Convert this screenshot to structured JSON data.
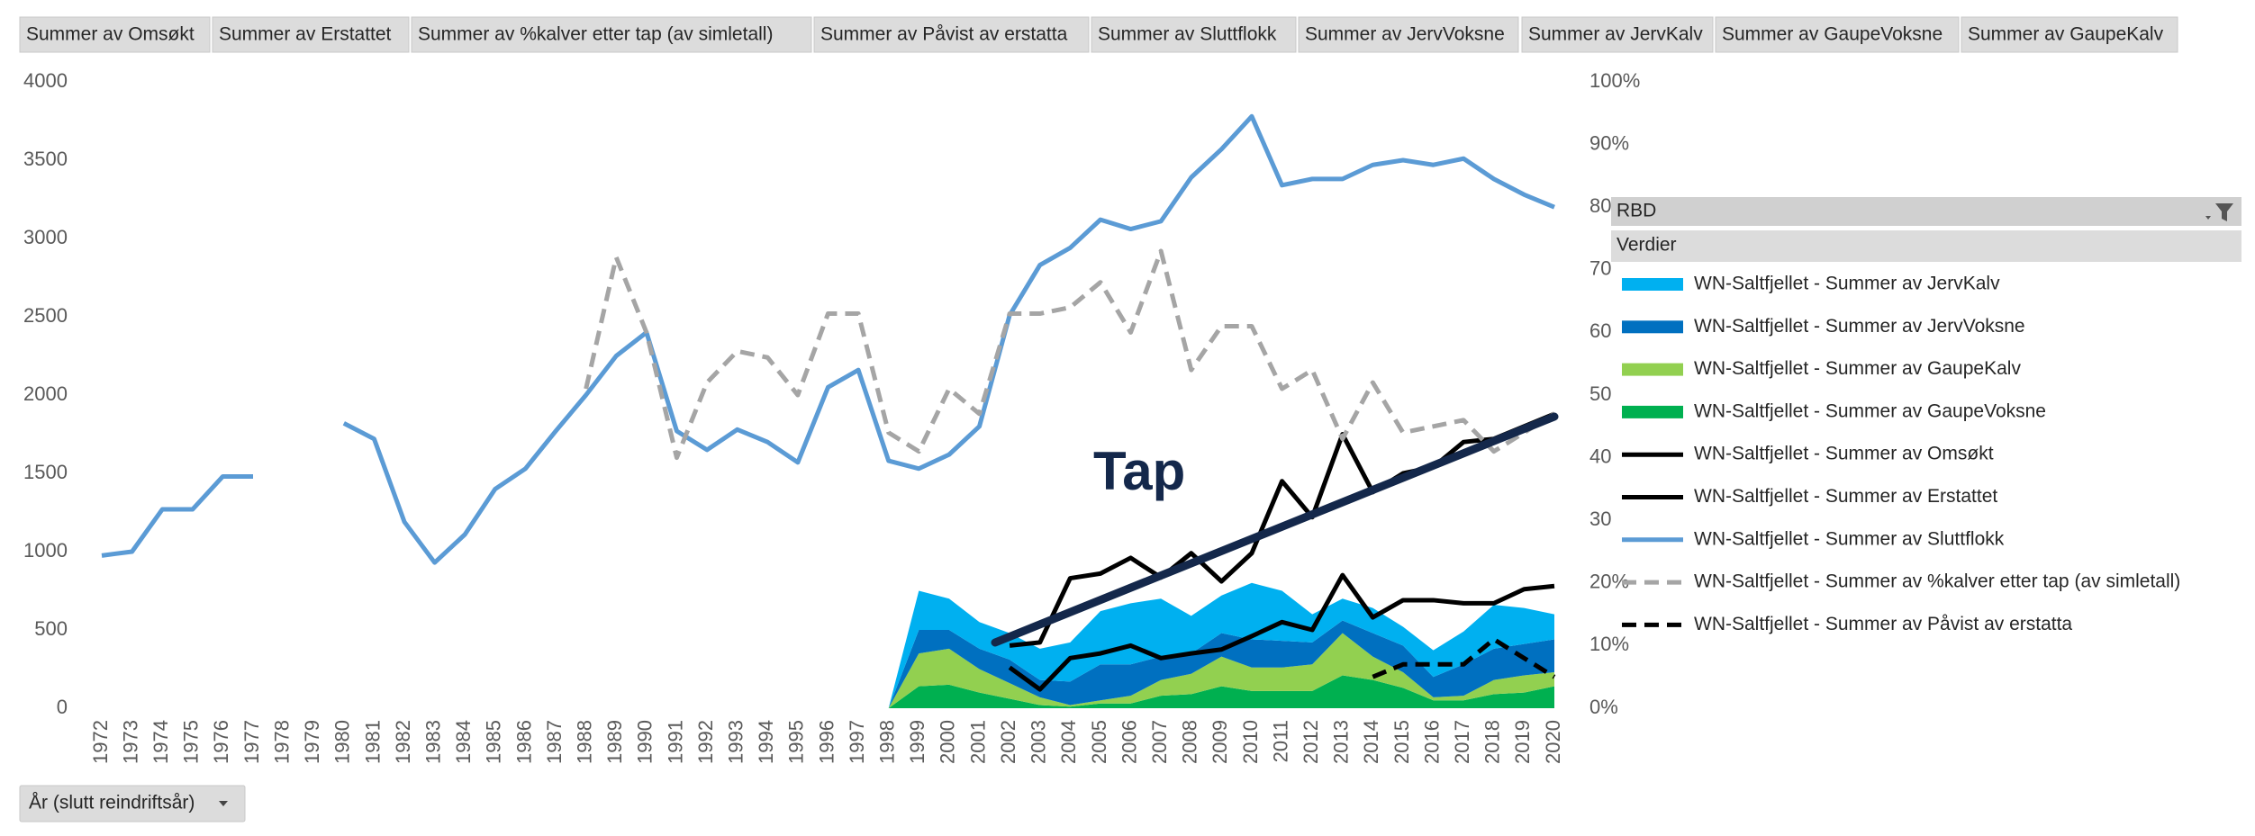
{
  "field_buttons": [
    "Summer av Omsøkt",
    "Summer av Erstattet",
    "Summer av %kalver etter tap (av simletall)",
    "Summer av Påvist av erstatta",
    "Summer av Sluttflokk",
    "Summer av JervVoksne",
    "Summer av JervKalv",
    "Summer av GaupeVoksne",
    "Summer av GaupeKalv"
  ],
  "axis_button": "År (slutt reindriftsår)",
  "legend_header": "RBD",
  "legend_subheader": "Verdier",
  "chart_data": {
    "type": "combo",
    "annotation": "Tap",
    "categories": [
      "1972",
      "1973",
      "1974",
      "1975",
      "1976",
      "1977",
      "1978",
      "1979",
      "1980",
      "1981",
      "1982",
      "1983",
      "1984",
      "1985",
      "1986",
      "1987",
      "1988",
      "1989",
      "1990",
      "1991",
      "1992",
      "1993",
      "1994",
      "1995",
      "1996",
      "1997",
      "1998",
      "1999",
      "2000",
      "2001",
      "2002",
      "2003",
      "2004",
      "2005",
      "2006",
      "2007",
      "2008",
      "2009",
      "2010",
      "2011",
      "2012",
      "2013",
      "2014",
      "2015",
      "2016",
      "2017",
      "2018",
      "2019",
      "2020"
    ],
    "ylim": [
      0,
      4000
    ],
    "yticks": [
      0,
      500,
      1000,
      1500,
      2000,
      2500,
      3000,
      3500,
      4000
    ],
    "y2lim": [
      0,
      100
    ],
    "y2ticks": [
      {
        "value": 0,
        "label": "0%"
      },
      {
        "value": 10,
        "label": "10%"
      },
      {
        "value": 20,
        "label": "20%"
      },
      {
        "value": 30,
        "label": "30%"
      },
      {
        "value": 40,
        "label": "40%"
      },
      {
        "value": 50,
        "label": "50%"
      },
      {
        "value": 60,
        "label": "60%"
      },
      {
        "value": 70,
        "label": "70%"
      },
      {
        "value": 80,
        "label": "80%"
      },
      {
        "value": 90,
        "label": "90%"
      },
      {
        "value": 100,
        "label": "100%"
      }
    ],
    "grid": false,
    "legend": "right",
    "series": [
      {
        "name": "WN-Saltfjellet - Summer av JervKalv",
        "color": "#00b0f0",
        "kind": "area",
        "axis": "y",
        "values": [
          null,
          null,
          null,
          null,
          null,
          null,
          null,
          null,
          null,
          null,
          null,
          null,
          null,
          null,
          null,
          null,
          null,
          null,
          null,
          null,
          null,
          null,
          null,
          null,
          null,
          null,
          0,
          250,
          200,
          170,
          170,
          200,
          250,
          340,
          390,
          370,
          240,
          240,
          360,
          320,
          180,
          140,
          160,
          120,
          170,
          210,
          280,
          230,
          160
        ]
      },
      {
        "name": "WN-Saltfjellet - Summer av JervVoksne",
        "color": "#0070c0",
        "kind": "area",
        "axis": "y",
        "values": [
          null,
          null,
          null,
          null,
          null,
          null,
          null,
          null,
          null,
          null,
          null,
          null,
          null,
          null,
          null,
          null,
          null,
          null,
          null,
          null,
          null,
          null,
          null,
          null,
          null,
          null,
          0,
          150,
          120,
          130,
          150,
          110,
          150,
          230,
          200,
          150,
          130,
          150,
          180,
          170,
          140,
          80,
          150,
          170,
          130,
          200,
          200,
          200,
          210
        ]
      },
      {
        "name": "WN-Saltfjellet - Summer av GaupeKalv",
        "color": "#92d050",
        "kind": "area",
        "axis": "y",
        "values": [
          null,
          null,
          null,
          null,
          null,
          null,
          null,
          null,
          null,
          null,
          null,
          null,
          null,
          null,
          null,
          null,
          null,
          null,
          null,
          null,
          null,
          null,
          null,
          null,
          null,
          null,
          0,
          210,
          230,
          150,
          100,
          50,
          10,
          20,
          50,
          100,
          130,
          190,
          150,
          150,
          170,
          270,
          150,
          100,
          20,
          30,
          90,
          110,
          90
        ]
      },
      {
        "name": "WN-Saltfjellet - Summer av GaupeVoksne",
        "color": "#00b050",
        "kind": "area",
        "axis": "y",
        "values": [
          null,
          null,
          null,
          null,
          null,
          null,
          null,
          null,
          null,
          null,
          null,
          null,
          null,
          null,
          null,
          null,
          null,
          null,
          null,
          null,
          null,
          null,
          null,
          null,
          null,
          null,
          0,
          140,
          150,
          100,
          60,
          20,
          10,
          30,
          30,
          80,
          90,
          140,
          110,
          110,
          110,
          210,
          180,
          130,
          50,
          50,
          90,
          100,
          140
        ]
      },
      {
        "name": "WN-Saltfjellet - Summer av Omsøkt",
        "color": "#000000",
        "kind": "line",
        "axis": "y",
        "dashed": false,
        "values": [
          null,
          null,
          null,
          null,
          null,
          null,
          null,
          null,
          null,
          null,
          null,
          null,
          null,
          null,
          null,
          null,
          null,
          null,
          null,
          null,
          null,
          null,
          null,
          null,
          null,
          null,
          null,
          null,
          null,
          null,
          400,
          420,
          830,
          860,
          960,
          835,
          990,
          810,
          990,
          1450,
          1220,
          1750,
          1380,
          1500,
          1540,
          1700,
          1720,
          1800,
          1880
        ]
      },
      {
        "name": "WN-Saltfjellet - Summer av Erstattet",
        "color": "#000000",
        "kind": "line",
        "axis": "y",
        "dashed": false,
        "values": [
          null,
          null,
          null,
          null,
          null,
          null,
          null,
          null,
          null,
          null,
          null,
          null,
          null,
          null,
          null,
          null,
          null,
          null,
          null,
          null,
          null,
          null,
          null,
          null,
          null,
          null,
          null,
          null,
          null,
          null,
          260,
          120,
          320,
          350,
          400,
          320,
          350,
          375,
          460,
          550,
          500,
          850,
          580,
          690,
          690,
          670,
          670,
          760,
          780
        ]
      },
      {
        "name": "WN-Saltfjellet - Summer av Sluttflokk",
        "color": "#5b9bd5",
        "kind": "line",
        "axis": "y",
        "dashed": false,
        "values": [
          975,
          1000,
          1270,
          1270,
          1480,
          1480,
          null,
          null,
          1820,
          1720,
          1190,
          930,
          1110,
          1400,
          1530,
          1770,
          2000,
          2250,
          2400,
          1770,
          1650,
          1780,
          1700,
          1570,
          2050,
          2160,
          1580,
          1530,
          1620,
          1800,
          2510,
          2830,
          2940,
          3120,
          3060,
          3110,
          3390,
          3570,
          3780,
          3340,
          3380,
          3380,
          3470,
          3500,
          3470,
          3510,
          3380,
          3280,
          3200
        ]
      },
      {
        "name": "WN-Saltfjellet - Summer av %kalver etter tap (av simletall)",
        "color": "#a5a5a5",
        "kind": "line",
        "axis": "y2",
        "dashed": true,
        "values": [
          null,
          null,
          null,
          null,
          null,
          null,
          null,
          null,
          null,
          null,
          null,
          null,
          null,
          null,
          null,
          null,
          51,
          72,
          60,
          40,
          52,
          57,
          56,
          50,
          63,
          63,
          44,
          41,
          51,
          47,
          63,
          63,
          64,
          68,
          60,
          73,
          54,
          61,
          61,
          51,
          54,
          43,
          52,
          44,
          45,
          46,
          41,
          44,
          47
        ]
      },
      {
        "name": "WN-Saltfjellet - Summer av Påvist av erstatta",
        "color": "#000000",
        "kind": "line",
        "axis": "y2",
        "dashed": true,
        "values": [
          null,
          null,
          null,
          null,
          null,
          null,
          null,
          null,
          null,
          null,
          null,
          null,
          null,
          null,
          null,
          null,
          null,
          null,
          null,
          null,
          null,
          null,
          null,
          null,
          null,
          null,
          null,
          null,
          null,
          null,
          null,
          null,
          null,
          null,
          null,
          null,
          null,
          null,
          null,
          null,
          null,
          null,
          5,
          7,
          7,
          7,
          11,
          8,
          5
        ]
      }
    ]
  }
}
